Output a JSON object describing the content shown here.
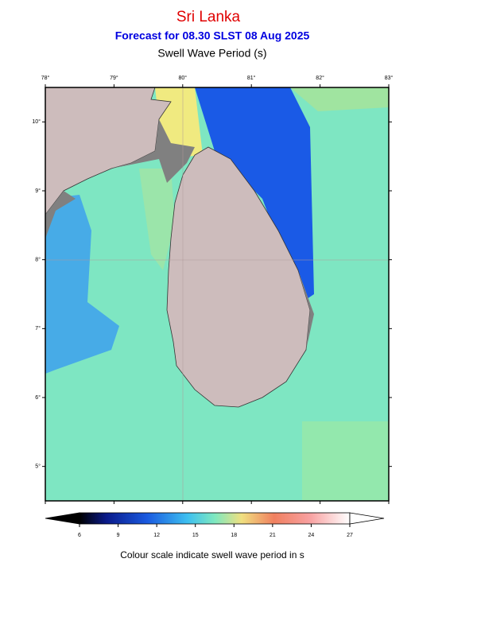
{
  "header": {
    "title": "Sri Lanka",
    "subtitle": "Forecast for  08.30 SLST 08 Aug 2025",
    "variable": "Swell Wave Period (s)"
  },
  "map": {
    "lon_range": [
      78,
      83
    ],
    "lat_range": [
      4.5,
      10.5
    ],
    "lon_ticks": [
      {
        "value": 78,
        "label": "78°"
      },
      {
        "value": 79,
        "label": "79°"
      },
      {
        "value": 80,
        "label": "80°"
      },
      {
        "value": 81,
        "label": "81°"
      },
      {
        "value": 82,
        "label": "82°"
      },
      {
        "value": 83,
        "label": "83°"
      }
    ],
    "lat_ticks": [
      {
        "value": 10,
        "label": "10°"
      },
      {
        "value": 9,
        "label": "9°"
      },
      {
        "value": 8,
        "label": "8°"
      },
      {
        "value": 7,
        "label": "7°"
      },
      {
        "value": 6,
        "label": "6°"
      },
      {
        "value": 5,
        "label": "5°"
      }
    ]
  },
  "colorbar": {
    "range": [
      6,
      27
    ],
    "ticks": [
      6,
      9,
      12,
      15,
      18,
      21,
      24,
      27
    ],
    "caption": "Colour scale indicate swell wave period in s"
  }
}
